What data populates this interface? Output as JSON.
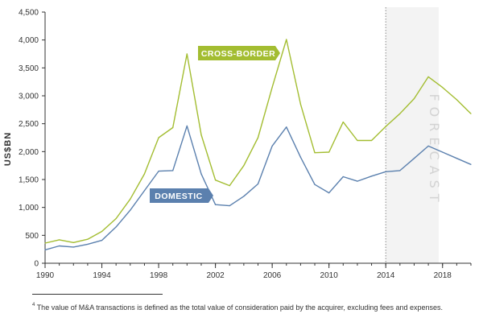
{
  "chart_data": {
    "type": "line",
    "ylabel": "US$BN",
    "ylim": [
      0,
      4500
    ],
    "yticks": [
      "0",
      "500",
      "1,000",
      "1,500",
      "2,000",
      "2,500",
      "3,000",
      "3,500",
      "4,000",
      "4,500"
    ],
    "xlim": [
      1990,
      2020
    ],
    "xticks": [
      "1990",
      "1994",
      "1998",
      "2002",
      "2006",
      "2010",
      "2014",
      "2018"
    ],
    "forecast_label": "FORECAST",
    "forecast_start": 2014,
    "series": [
      {
        "name": "CROSS-BORDER",
        "color": "#a3bd31",
        "x": [
          1990,
          1991,
          1992,
          1993,
          1994,
          1995,
          1996,
          1997,
          1998,
          1999,
          2000,
          2001,
          2002,
          2003,
          2004,
          2005,
          2006,
          2007,
          2008,
          2009,
          2010,
          2011,
          2012,
          2013,
          2014,
          2015,
          2016,
          2017,
          2018,
          2019,
          2020
        ],
        "values": [
          360,
          420,
          370,
          430,
          570,
          800,
          1150,
          1600,
          2250,
          2430,
          3750,
          2300,
          1490,
          1390,
          1750,
          2250,
          3150,
          4010,
          2850,
          1980,
          1990,
          2530,
          2200,
          2200,
          2450,
          2680,
          2950,
          3340,
          3150,
          2930,
          2680
        ]
      },
      {
        "name": "DOMESTIC",
        "color": "#5b80ae",
        "x": [
          1990,
          1991,
          1992,
          1993,
          1994,
          1995,
          1996,
          1997,
          1998,
          1999,
          2000,
          2001,
          2002,
          2003,
          2004,
          2005,
          2006,
          2007,
          2008,
          2009,
          2010,
          2011,
          2012,
          2013,
          2014,
          2015,
          2016,
          2017,
          2018,
          2019,
          2020
        ],
        "values": [
          240,
          310,
          290,
          340,
          410,
          650,
          950,
          1300,
          1650,
          1660,
          2460,
          1600,
          1050,
          1030,
          1200,
          1420,
          2100,
          2440,
          1900,
          1410,
          1260,
          1550,
          1470,
          1560,
          1640,
          1660,
          1880,
          2100,
          1990,
          1880,
          1770
        ]
      }
    ]
  },
  "footnote": {
    "marker": "4",
    "text": "The value of M&A transactions is defined as the total value of consideration paid by the acquirer, excluding fees and expenses."
  }
}
